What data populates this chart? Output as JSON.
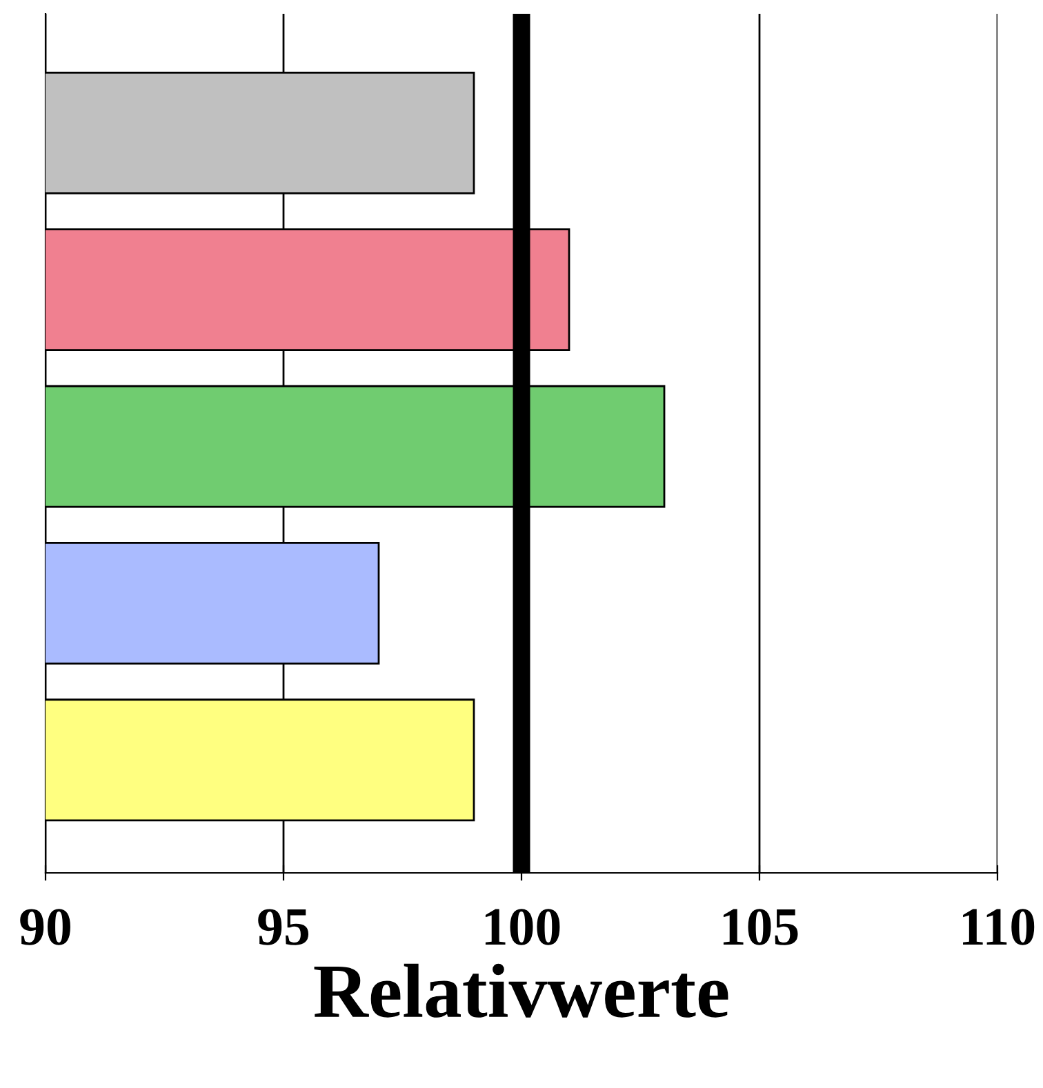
{
  "chart_data": {
    "type": "bar",
    "orientation": "horizontal",
    "xlabel": "Relativwerte",
    "categories": [
      null,
      null,
      null,
      null,
      null
    ],
    "values": [
      99,
      101,
      103,
      97,
      99
    ],
    "colors": [
      "#c0c0c0",
      "#f08090",
      "#70cc70",
      "#aabbff",
      "#ffff80"
    ],
    "xlim": [
      90,
      110
    ],
    "xticks": [
      90,
      95,
      100,
      105,
      110
    ],
    "grid": "x",
    "ref_lines": [
      {
        "axis": "x",
        "value": 100,
        "color": "#000000"
      }
    ]
  }
}
